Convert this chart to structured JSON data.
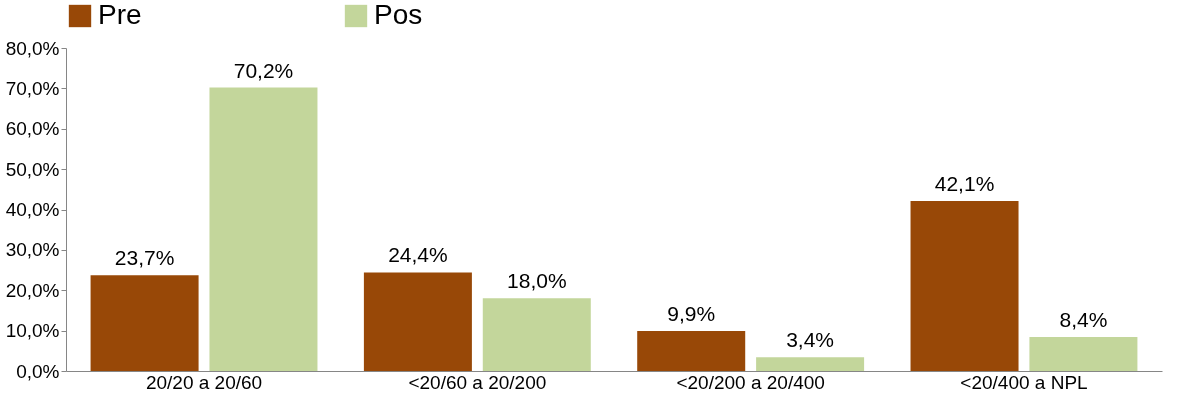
{
  "chart_data": {
    "type": "bar",
    "categories": [
      "20/20 a 20/60",
      "<20/60 a 20/200",
      "<20/200 a 20/400",
      "<20/400 a NPL"
    ],
    "series": [
      {
        "name": "Pre",
        "color": "#984807",
        "values": [
          23.7,
          24.4,
          9.9,
          42.1
        ],
        "value_labels": [
          "23,7%",
          "24,4%",
          "9,9%",
          "42,1%"
        ]
      },
      {
        "name": "Pos",
        "color": "#c3d69b",
        "values": [
          70.2,
          18.0,
          3.4,
          8.4
        ],
        "value_labels": [
          "70,2%",
          "18,0%",
          "3,4%",
          "8,4%"
        ]
      }
    ],
    "ylim": [
      0,
      80
    ],
    "yticks": [
      {
        "value": 0,
        "label": "0,0%"
      },
      {
        "value": 10,
        "label": "10,0%"
      },
      {
        "value": 20,
        "label": "20,0%"
      },
      {
        "value": 30,
        "label": "30,0%"
      },
      {
        "value": 40,
        "label": "40,0%"
      },
      {
        "value": 50,
        "label": "50,0%"
      },
      {
        "value": 60,
        "label": "60,0%"
      },
      {
        "value": 70,
        "label": "70,0%"
      },
      {
        "value": 80,
        "label": "80,0%"
      }
    ],
    "grid": false,
    "legend": "top"
  }
}
